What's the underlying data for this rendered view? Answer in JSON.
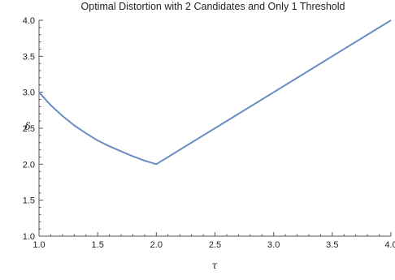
{
  "chart_data": {
    "type": "line",
    "title": "Optimal Distortion with 2 Candidates and Only 1 Threshold",
    "xlabel": "τ",
    "ylabel": "δ",
    "xlim": [
      1.0,
      4.0
    ],
    "ylim": [
      1.0,
      4.0
    ],
    "x_ticks": [
      "1.0",
      "1.5",
      "2.0",
      "2.5",
      "3.0",
      "3.5",
      "4.0"
    ],
    "y_ticks": [
      "1.0",
      "1.5",
      "2.0",
      "2.5",
      "3.0",
      "3.5",
      "4.0"
    ],
    "grid": false,
    "series": [
      {
        "x": [
          1.0,
          1.1,
          1.2,
          1.3,
          1.4,
          1.5,
          1.6,
          1.7,
          1.8,
          1.9,
          2.0,
          2.5,
          3.0,
          3.5,
          4.0
        ],
        "y": [
          3.0,
          2.82,
          2.67,
          2.54,
          2.43,
          2.33,
          2.25,
          2.18,
          2.11,
          2.05,
          2.0,
          2.5,
          3.0,
          3.5,
          4.0
        ],
        "color": "#6a8cc4"
      }
    ]
  }
}
